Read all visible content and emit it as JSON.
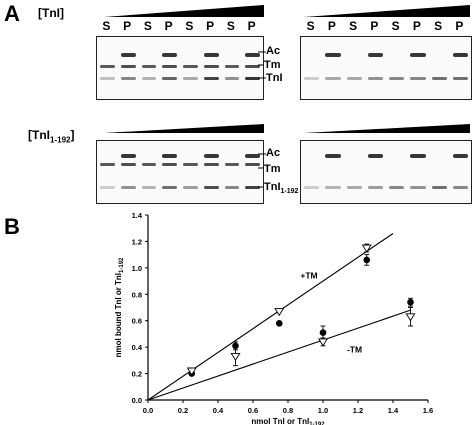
{
  "panel_a": {
    "letter": "A",
    "row1_label": "[TnI]",
    "row2_label": "[TnI",
    "row2_sub": "1-192",
    "row2_close": "]",
    "lanes": [
      "S",
      "P",
      "S",
      "P",
      "S",
      "P",
      "S",
      "P"
    ],
    "band_labels": {
      "ac": "Ac",
      "tm": "Tm",
      "tni": "TnI",
      "tni192": "TnI",
      "tni192_sub": "1-192"
    }
  },
  "panel_b": {
    "letter": "B",
    "chart_data": {
      "type": "scatter",
      "xlabel": "nmol TnI or TnI",
      "xlabel_sub": "1-192",
      "ylabel": "nmol bound TnI or TnI",
      "ylabel_sub": "1-192",
      "xlim": [
        0,
        1.6
      ],
      "ylim": [
        0,
        1.4
      ],
      "xticks": [
        "0.0",
        "0.2",
        "0.4",
        "0.6",
        "0.8",
        "1.0",
        "1.2",
        "1.4",
        "1.6"
      ],
      "yticks": [
        "0.0",
        "0.2",
        "0.4",
        "0.6",
        "0.8",
        "1.0",
        "1.2",
        "1.4"
      ],
      "annotations": [
        "+TM",
        "-TM"
      ],
      "series": [
        {
          "marker": "circle",
          "points": [
            [
              0.25,
              0.2
            ],
            [
              0.5,
              0.41
            ],
            [
              0.75,
              0.58
            ],
            [
              1.0,
              0.51
            ],
            [
              1.25,
              1.06
            ],
            [
              1.5,
              0.74
            ]
          ],
          "err": [
            0.02,
            0.03,
            0.02,
            0.05,
            0.04,
            0.03
          ]
        },
        {
          "marker": "triangle",
          "points": [
            [
              0.25,
              0.22
            ],
            [
              0.5,
              0.33
            ],
            [
              0.75,
              0.67
            ],
            [
              1.0,
              0.44
            ],
            [
              1.25,
              1.15
            ],
            [
              1.5,
              0.63
            ]
          ],
          "err": [
            0.02,
            0.07,
            0.02,
            0.03,
            0.03,
            0.07
          ]
        }
      ],
      "fit_lines": [
        {
          "x": [
            0.0,
            1.4
          ],
          "y": [
            0.0,
            1.26
          ]
        },
        {
          "x": [
            0.0,
            1.5
          ],
          "y": [
            0.0,
            0.68
          ]
        }
      ]
    }
  }
}
